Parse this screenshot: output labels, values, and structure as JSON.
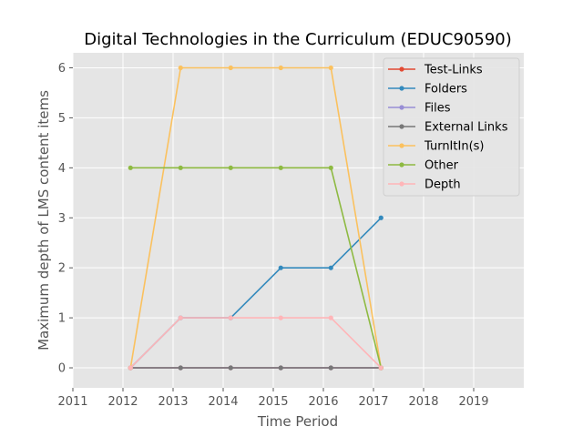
{
  "chart_data": {
    "type": "line",
    "title": "Digital Technologies in the Curriculum (EDUC90590)",
    "xlabel": "Time Period",
    "ylabel": "Maximum depth of LMS content items",
    "xlim": [
      2011,
      2020
    ],
    "ylim": [
      -0.4,
      6.3
    ],
    "xticks": [
      "2011",
      "2012",
      "2013",
      "2014",
      "2015",
      "2016",
      "2017",
      "2018",
      "2019"
    ],
    "yticks": [
      "0",
      "1",
      "2",
      "3",
      "4",
      "5",
      "6"
    ],
    "grid": true,
    "legend_position": "top-right",
    "x": [
      2012.15,
      2013.15,
      2014.15,
      2015.15,
      2016.15,
      2017.15
    ],
    "series": [
      {
        "name": "Test-Links",
        "color": "#E24A33",
        "values": [
          0,
          0,
          0,
          0,
          0,
          0
        ]
      },
      {
        "name": "Folders",
        "color": "#348ABD",
        "values": [
          0,
          1,
          1,
          2,
          2,
          3
        ]
      },
      {
        "name": "Files",
        "color": "#988ED5",
        "values": [
          0,
          0,
          0,
          0,
          0,
          0
        ]
      },
      {
        "name": "External Links",
        "color": "#777777",
        "values": [
          0,
          0,
          0,
          0,
          0,
          0
        ]
      },
      {
        "name": "TurnItIn(s)",
        "color": "#FBC15E",
        "values": [
          0,
          6,
          6,
          6,
          6,
          0
        ]
      },
      {
        "name": "Other",
        "color": "#8EBA42",
        "values": [
          4,
          4,
          4,
          4,
          4,
          0
        ]
      },
      {
        "name": "Depth",
        "color": "#FFB5B8",
        "values": [
          0,
          1,
          1,
          1,
          1,
          0
        ]
      }
    ]
  }
}
